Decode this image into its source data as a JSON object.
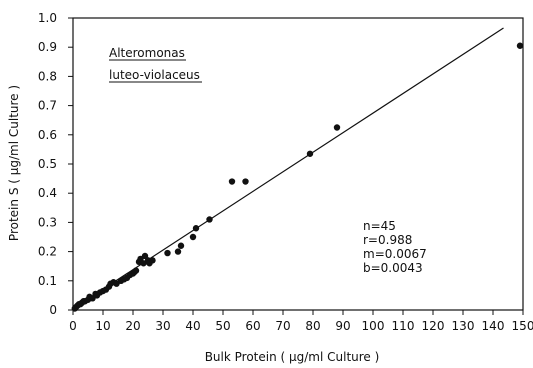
{
  "chart_data": {
    "type": "scatter",
    "xlabel": "Bulk Protein ( µg/ml Culture )",
    "ylabel": "Protein S ( µg/ml Culture )",
    "xlim": [
      0,
      150
    ],
    "ylim": [
      0,
      1.0
    ],
    "x_ticks": [
      0,
      10,
      20,
      30,
      40,
      50,
      60,
      70,
      80,
      90,
      100,
      110,
      120,
      130,
      140,
      150
    ],
    "y_ticks": [
      "0",
      "0.1",
      "0.2",
      "0.3",
      "0.4",
      "0.5",
      "0.6",
      "0.7",
      "0.8",
      "0.9",
      "1.0"
    ],
    "organism": [
      "Alteromonas",
      "luteo-violaceus"
    ],
    "stats": [
      "n=45",
      "r=0.988",
      "m=0.0067",
      "b=0.0043"
    ],
    "regression": {
      "slope": 0.0067,
      "intercept": 0.0043,
      "x_range": [
        0,
        143.5
      ]
    },
    "points": [
      [
        0.6,
        0.005
      ],
      [
        1.0,
        0.01
      ],
      [
        1.5,
        0.015
      ],
      [
        2.0,
        0.02
      ],
      [
        2.5,
        0.02
      ],
      [
        3.0,
        0.025
      ],
      [
        3.5,
        0.03
      ],
      [
        4.0,
        0.03
      ],
      [
        5.0,
        0.035
      ],
      [
        5.5,
        0.045
      ],
      [
        6.5,
        0.04
      ],
      [
        7.5,
        0.055
      ],
      [
        9.0,
        0.06
      ],
      [
        10.0,
        0.065
      ],
      [
        11.0,
        0.07
      ],
      [
        12.0,
        0.08
      ],
      [
        12.5,
        0.09
      ],
      [
        13.5,
        0.095
      ],
      [
        14.5,
        0.09
      ],
      [
        16.0,
        0.1
      ],
      [
        17.0,
        0.105
      ],
      [
        19.0,
        0.12
      ],
      [
        20.0,
        0.125
      ],
      [
        20.5,
        0.13
      ],
      [
        21.0,
        0.135
      ],
      [
        22.0,
        0.165
      ],
      [
        22.5,
        0.175
      ],
      [
        23.5,
        0.16
      ],
      [
        24.0,
        0.185
      ],
      [
        25.0,
        0.17
      ],
      [
        25.5,
        0.16
      ],
      [
        26.5,
        0.17
      ],
      [
        31.5,
        0.195
      ],
      [
        35.0,
        0.2
      ],
      [
        36.0,
        0.22
      ],
      [
        40.0,
        0.25
      ],
      [
        41.0,
        0.28
      ],
      [
        45.5,
        0.31
      ],
      [
        53.0,
        0.44
      ],
      [
        57.5,
        0.44
      ],
      [
        79.0,
        0.535
      ],
      [
        88.0,
        0.625
      ],
      [
        149.0,
        0.905
      ],
      [
        8.0,
        0.05
      ],
      [
        18.0,
        0.11
      ]
    ]
  }
}
